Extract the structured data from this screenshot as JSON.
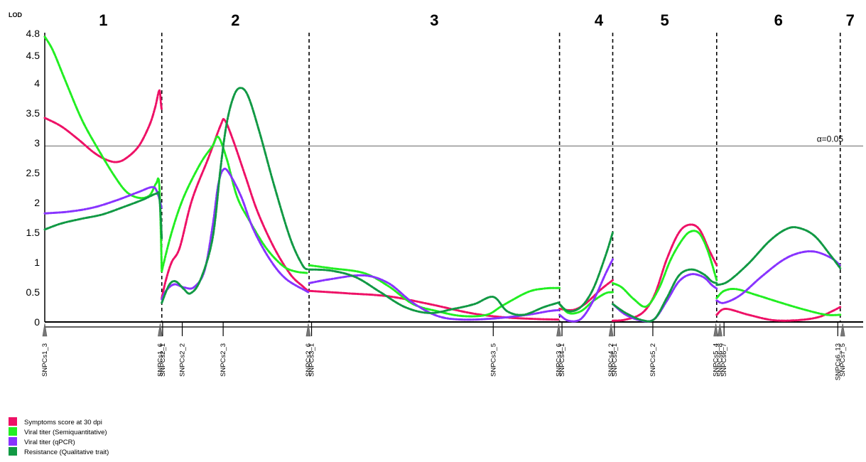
{
  "chart_data": {
    "type": "line",
    "ylabel": "LOD",
    "yticks": [
      0,
      0.5,
      1,
      1.5,
      2,
      2.5,
      3,
      3.5,
      4,
      4.5,
      4.8
    ],
    "ylim": [
      0,
      4.8
    ],
    "xlim": [
      0,
      1000
    ],
    "threshold": {
      "value": 2.95,
      "label": "α=0.05"
    },
    "groups": [
      {
        "label": "1",
        "start": 0,
        "end": 143
      },
      {
        "label": "2",
        "start": 143,
        "end": 323
      },
      {
        "label": "3",
        "start": 323,
        "end": 629
      },
      {
        "label": "4",
        "start": 629,
        "end": 694
      },
      {
        "label": "5",
        "start": 694,
        "end": 821
      },
      {
        "label": "6",
        "start": 821,
        "end": 972
      },
      {
        "label": "7",
        "start": 972,
        "end": 1000
      }
    ],
    "boundaries": [
      143,
      323,
      629,
      694,
      821,
      972
    ],
    "markers": [
      {
        "label": "SNPCs1_3",
        "x": 0,
        "arrow": true
      },
      {
        "label": "SNPCs1_6",
        "x": 141,
        "arrow": true
      },
      {
        "label": "SNPCs2_1",
        "x": 144,
        "arrow": false
      },
      {
        "label": "SNPCs2_2",
        "x": 168,
        "arrow": false
      },
      {
        "label": "SNPCs2_3",
        "x": 218,
        "arrow": false
      },
      {
        "label": "SNPCs2_6",
        "x": 322,
        "arrow": true
      },
      {
        "label": "SNPCs3_1",
        "x": 326,
        "arrow": false
      },
      {
        "label": "SNPCs3_5",
        "x": 548,
        "arrow": false
      },
      {
        "label": "SNPCs3_6",
        "x": 628,
        "arrow": true
      },
      {
        "label": "SNPCs4_1",
        "x": 632,
        "arrow": false
      },
      {
        "label": "SNPCs4_2",
        "x": 692,
        "arrow": true
      },
      {
        "label": "SNPCs5_1",
        "x": 696,
        "arrow": false
      },
      {
        "label": "SNPCs5_2",
        "x": 743,
        "arrow": false
      },
      {
        "label": "SNPCs5_4",
        "x": 820,
        "arrow": true
      },
      {
        "label": "SNPCs6_8",
        "x": 825,
        "arrow": true
      },
      {
        "label": "SNPCs6_7",
        "x": 830,
        "arrow": false
      },
      {
        "label": "SNPCs6_13",
        "x": 969,
        "arrow": false
      },
      {
        "label": "SNPCs7_5",
        "x": 975,
        "arrow": true
      }
    ],
    "series": [
      {
        "name": "Symptoms score at 30 dpi",
        "color": "#ee1166",
        "segments": [
          [
            [
              0,
              3.42
            ],
            [
              20,
              3.28
            ],
            [
              40,
              3.07
            ],
            [
              60,
              2.84
            ],
            [
              75,
              2.72
            ],
            [
              88,
              2.68
            ],
            [
              100,
              2.75
            ],
            [
              115,
              2.95
            ],
            [
              128,
              3.3
            ],
            [
              135,
              3.6
            ],
            [
              140,
              3.88
            ],
            [
              142,
              3.65
            ],
            [
              143,
              3.55
            ]
          ],
          [
            [
              143,
              0.4
            ],
            [
              148,
              0.7
            ],
            [
              155,
              1.0
            ],
            [
              165,
              1.25
            ],
            [
              180,
              2.05
            ],
            [
              200,
              2.75
            ],
            [
              215,
              3.3
            ],
            [
              220,
              3.38
            ],
            [
              230,
              3.05
            ],
            [
              245,
              2.45
            ],
            [
              260,
              1.85
            ],
            [
              280,
              1.25
            ],
            [
              300,
              0.8
            ],
            [
              315,
              0.6
            ],
            [
              322,
              0.52
            ]
          ],
          [
            [
              323,
              0.52
            ],
            [
              370,
              0.48
            ],
            [
              420,
              0.43
            ],
            [
              470,
              0.3
            ],
            [
              520,
              0.15
            ],
            [
              560,
              0.08
            ],
            [
              600,
              0.05
            ],
            [
              629,
              0.04
            ]
          ],
          [
            [
              629,
              0.22
            ],
            [
              645,
              0.2
            ],
            [
              660,
              0.3
            ],
            [
              680,
              0.55
            ],
            [
              694,
              0.7
            ]
          ],
          [
            [
              694,
              0.02
            ],
            [
              710,
              0.04
            ],
            [
              730,
              0.15
            ],
            [
              745,
              0.45
            ],
            [
              760,
              1.05
            ],
            [
              775,
              1.5
            ],
            [
              788,
              1.63
            ],
            [
              800,
              1.55
            ],
            [
              812,
              1.2
            ],
            [
              821,
              0.95
            ]
          ],
          [
            [
              821,
              0.12
            ],
            [
              832,
              0.22
            ],
            [
              860,
              0.12
            ],
            [
              890,
              0.03
            ],
            [
              920,
              0.03
            ],
            [
              945,
              0.08
            ],
            [
              962,
              0.18
            ],
            [
              972,
              0.25
            ]
          ]
        ]
      },
      {
        "name": "Viral titer (Semiquantitative)",
        "color": "#22ee22",
        "segments": [
          [
            [
              0,
              4.78
            ],
            [
              10,
              4.55
            ],
            [
              25,
              4.05
            ],
            [
              45,
              3.4
            ],
            [
              65,
              2.9
            ],
            [
              85,
              2.45
            ],
            [
              100,
              2.18
            ],
            [
              115,
              2.08
            ],
            [
              128,
              2.12
            ],
            [
              136,
              2.32
            ],
            [
              140,
              2.28
            ],
            [
              143,
              0.85
            ]
          ],
          [
            [
              143,
              0.85
            ],
            [
              155,
              1.5
            ],
            [
              170,
              2.1
            ],
            [
              190,
              2.65
            ],
            [
              205,
              2.95
            ],
            [
              212,
              3.1
            ],
            [
              222,
              2.75
            ],
            [
              235,
              2.1
            ],
            [
              250,
              1.7
            ],
            [
              270,
              1.25
            ],
            [
              290,
              0.95
            ],
            [
              305,
              0.85
            ],
            [
              322,
              0.82
            ]
          ],
          [
            [
              323,
              0.95
            ],
            [
              350,
              0.9
            ],
            [
              390,
              0.82
            ],
            [
              420,
              0.6
            ],
            [
              450,
              0.3
            ],
            [
              480,
              0.18
            ],
            [
              510,
              0.1
            ],
            [
              540,
              0.12
            ],
            [
              560,
              0.28
            ],
            [
              590,
              0.5
            ],
            [
              610,
              0.56
            ],
            [
              629,
              0.57
            ]
          ],
          [
            [
              629,
              0.3
            ],
            [
              640,
              0.15
            ],
            [
              655,
              0.18
            ],
            [
              670,
              0.35
            ],
            [
              685,
              0.48
            ],
            [
              694,
              0.5
            ]
          ],
          [
            [
              694,
              0.65
            ],
            [
              705,
              0.58
            ],
            [
              720,
              0.38
            ],
            [
              735,
              0.26
            ],
            [
              750,
              0.55
            ],
            [
              765,
              1.05
            ],
            [
              780,
              1.4
            ],
            [
              790,
              1.52
            ],
            [
              800,
              1.48
            ],
            [
              810,
              1.2
            ],
            [
              821,
              0.7
            ]
          ],
          [
            [
              821,
              0.4
            ],
            [
              830,
              0.52
            ],
            [
              845,
              0.55
            ],
            [
              870,
              0.45
            ],
            [
              900,
              0.32
            ],
            [
              930,
              0.2
            ],
            [
              955,
              0.12
            ],
            [
              972,
              0.12
            ]
          ]
        ]
      },
      {
        "name": "Viral titer (qPCR)",
        "color": "#8833ff",
        "segments": [
          [
            [
              0,
              1.82
            ],
            [
              30,
              1.85
            ],
            [
              60,
              1.92
            ],
            [
              90,
              2.05
            ],
            [
              115,
              2.18
            ],
            [
              132,
              2.26
            ],
            [
              138,
              2.15
            ],
            [
              143,
              1.9
            ]
          ],
          [
            [
              143,
              0.38
            ],
            [
              148,
              0.52
            ],
            [
              158,
              0.63
            ],
            [
              170,
              0.58
            ],
            [
              182,
              0.58
            ],
            [
              195,
              0.85
            ],
            [
              205,
              1.6
            ],
            [
              212,
              2.3
            ],
            [
              218,
              2.55
            ],
            [
              225,
              2.5
            ],
            [
              240,
              2.1
            ],
            [
              255,
              1.55
            ],
            [
              275,
              1.05
            ],
            [
              295,
              0.72
            ],
            [
              322,
              0.5
            ]
          ],
          [
            [
              323,
              0.65
            ],
            [
              350,
              0.72
            ],
            [
              390,
              0.78
            ],
            [
              420,
              0.65
            ],
            [
              450,
              0.32
            ],
            [
              480,
              0.1
            ],
            [
              510,
              0.04
            ],
            [
              550,
              0.06
            ],
            [
              590,
              0.12
            ],
            [
              615,
              0.18
            ],
            [
              629,
              0.2
            ]
          ],
          [
            [
              629,
              0.12
            ],
            [
              640,
              0.02
            ],
            [
              655,
              0.05
            ],
            [
              670,
              0.35
            ],
            [
              685,
              0.8
            ],
            [
              694,
              1.05
            ]
          ],
          [
            [
              694,
              0.3
            ],
            [
              710,
              0.12
            ],
            [
              730,
              0.02
            ],
            [
              745,
              0.05
            ],
            [
              760,
              0.35
            ],
            [
              775,
              0.68
            ],
            [
              790,
              0.8
            ],
            [
              805,
              0.75
            ],
            [
              815,
              0.62
            ],
            [
              821,
              0.56
            ]
          ],
          [
            [
              821,
              0.36
            ],
            [
              830,
              0.32
            ],
            [
              850,
              0.45
            ],
            [
              875,
              0.75
            ],
            [
              900,
              1.02
            ],
            [
              920,
              1.15
            ],
            [
              940,
              1.18
            ],
            [
              960,
              1.08
            ],
            [
              972,
              0.95
            ]
          ]
        ]
      },
      {
        "name": "Resistance (Qualitative trait)",
        "color": "#119944",
        "segments": [
          [
            [
              0,
              1.55
            ],
            [
              20,
              1.65
            ],
            [
              45,
              1.73
            ],
            [
              70,
              1.8
            ],
            [
              95,
              1.92
            ],
            [
              120,
              2.05
            ],
            [
              136,
              2.15
            ],
            [
              140,
              2.1
            ],
            [
              143,
              1.4
            ]
          ],
          [
            [
              143,
              0.32
            ],
            [
              152,
              0.62
            ],
            [
              160,
              0.68
            ],
            [
              170,
              0.55
            ],
            [
              178,
              0.48
            ],
            [
              190,
              0.7
            ],
            [
              205,
              1.4
            ],
            [
              215,
              2.6
            ],
            [
              222,
              3.3
            ],
            [
              230,
              3.75
            ],
            [
              238,
              3.92
            ],
            [
              248,
              3.8
            ],
            [
              262,
              3.2
            ],
            [
              280,
              2.3
            ],
            [
              300,
              1.4
            ],
            [
              315,
              0.95
            ],
            [
              322,
              0.88
            ]
          ],
          [
            [
              323,
              0.88
            ],
            [
              350,
              0.86
            ],
            [
              380,
              0.75
            ],
            [
              410,
              0.5
            ],
            [
              440,
              0.25
            ],
            [
              470,
              0.15
            ],
            [
              500,
              0.22
            ],
            [
              525,
              0.3
            ],
            [
              548,
              0.42
            ],
            [
              565,
              0.18
            ],
            [
              585,
              0.12
            ],
            [
              610,
              0.25
            ],
            [
              629,
              0.33
            ]
          ],
          [
            [
              629,
              0.3
            ],
            [
              640,
              0.18
            ],
            [
              655,
              0.25
            ],
            [
              670,
              0.55
            ],
            [
              685,
              1.1
            ],
            [
              694,
              1.5
            ]
          ],
          [
            [
              694,
              0.3
            ],
            [
              710,
              0.15
            ],
            [
              730,
              0.03
            ],
            [
              745,
              0.05
            ],
            [
              760,
              0.4
            ],
            [
              775,
              0.78
            ],
            [
              790,
              0.88
            ],
            [
              805,
              0.8
            ],
            [
              815,
              0.68
            ],
            [
              821,
              0.65
            ]
          ],
          [
            [
              821,
              0.62
            ],
            [
              835,
              0.68
            ],
            [
              860,
              0.98
            ],
            [
              885,
              1.35
            ],
            [
              905,
              1.55
            ],
            [
              920,
              1.58
            ],
            [
              940,
              1.45
            ],
            [
              960,
              1.12
            ],
            [
              972,
              0.9
            ]
          ]
        ]
      }
    ],
    "legend_position": "bottom-left"
  }
}
